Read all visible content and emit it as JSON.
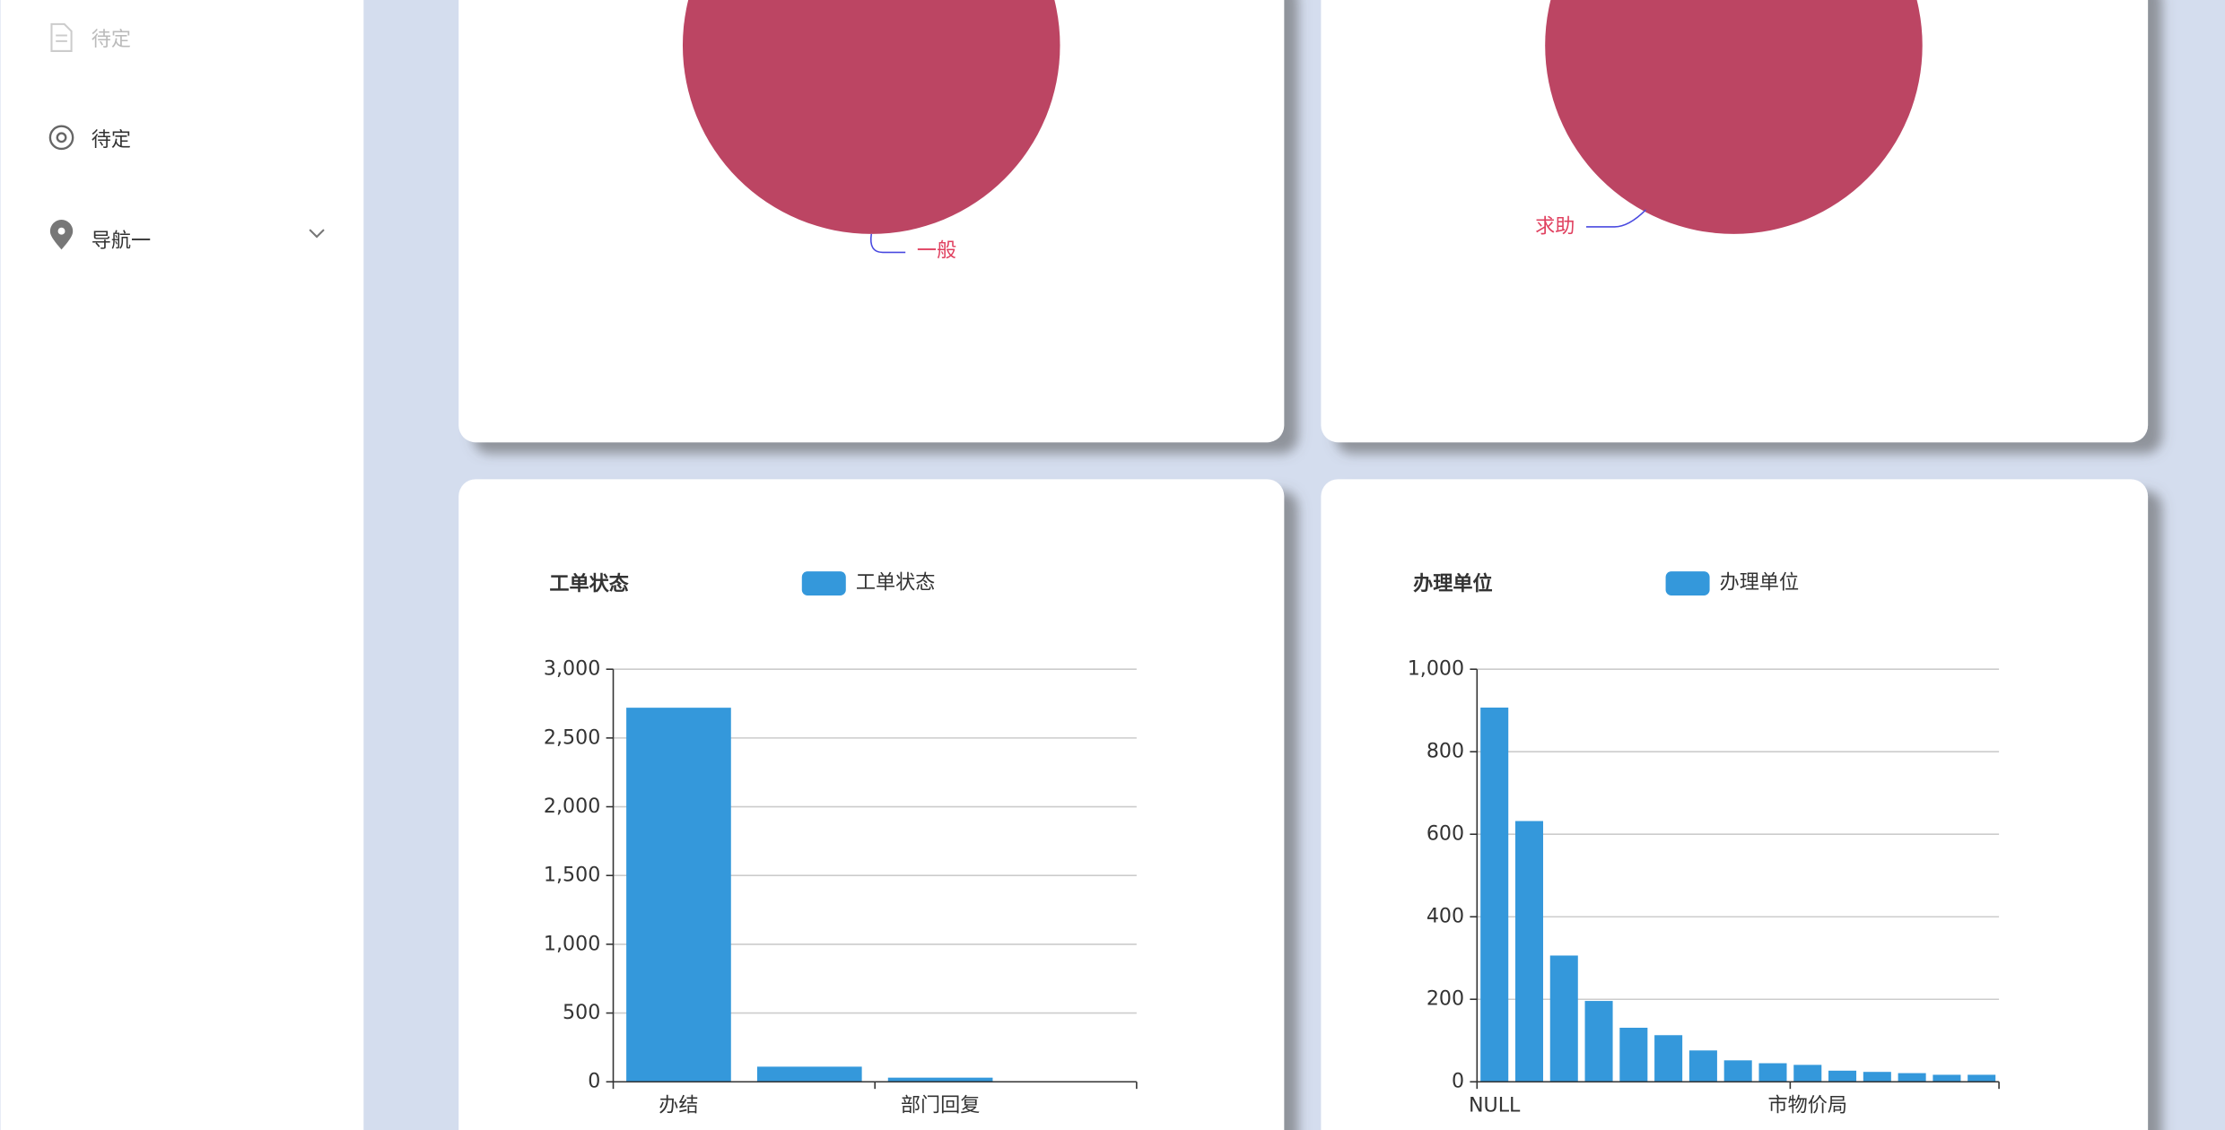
{
  "menu": [
    "待定",
    "待定",
    "导航一"
  ],
  "chart_data": [
    {
      "type": "pie",
      "categories": [
        "一般"
      ],
      "values": [
        100
      ],
      "color": "#bc4563"
    },
    {
      "type": "pie",
      "categories": [
        "求助"
      ],
      "values": [
        100
      ],
      "color": "#bc4563"
    },
    {
      "type": "bar",
      "title": "工单状态",
      "legend": "工单状态",
      "color": "#3498db",
      "categories": [
        "办结",
        null,
        "部门回复",
        null
      ],
      "values": [
        2720,
        110,
        30,
        2
      ],
      "ylim": [
        0,
        3000
      ],
      "yticks": [
        0,
        500,
        {
          "value": 1000,
          "label": "1,000"
        },
        {
          "value": 1500,
          "label": "1,500"
        },
        {
          "value": 2000,
          "label": "2,000"
        },
        {
          "value": 2500,
          "label": "2,500"
        },
        {
          "value": 3000,
          "label": "3,000"
        }
      ],
      "grid": true
    },
    {
      "type": "bar",
      "title": "办理单位",
      "legend": "办理单位",
      "color": "#3498db",
      "categories": [
        "NULL",
        null,
        null,
        null,
        null,
        null,
        null,
        null,
        null,
        "市物价局",
        null,
        null,
        null,
        null,
        null
      ],
      "values": [
        907,
        632,
        306,
        196,
        131,
        113,
        76,
        52,
        45,
        41,
        27,
        24,
        21,
        17,
        17
      ],
      "ylim": [
        0,
        1000
      ],
      "yticks": [
        0,
        200,
        400,
        600,
        800,
        {
          "value": 1000,
          "label": "1,000"
        }
      ],
      "grid": true
    }
  ]
}
